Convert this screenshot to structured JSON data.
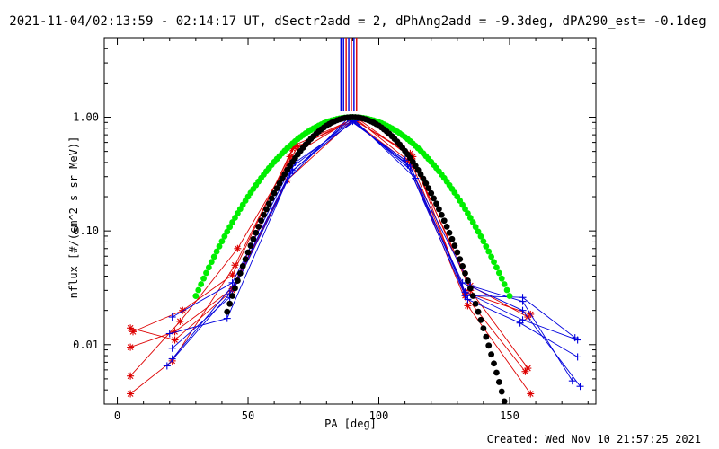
{
  "title": "2021-11-04/02:13:59 - 02:14:17 UT, dSectr2add = 2, dPhAng2add = -9.3deg, dPA290_est= -0.1deg",
  "footer": "Created: Wed Nov 10 21:57:25 2021",
  "chart_data": {
    "type": "line",
    "xlabel": "PA [deg]",
    "ylabel": "nflux [#/(cm^2 s sr MeV)]",
    "xlim": [
      -5,
      183
    ],
    "ylim": [
      0.003,
      5.0
    ],
    "yscale": "log",
    "grid": false,
    "x_ticks": [
      0,
      50,
      100,
      150
    ],
    "x_tick_labels": [
      "0",
      "50",
      "100",
      "150"
    ],
    "y_ticks": [
      0.01,
      0.1,
      1.0
    ],
    "y_tick_labels": [
      "0.01",
      "0.10",
      "1.00"
    ],
    "colors": {
      "red": "#dd0000",
      "blue": "#0000dd",
      "green": "#00ee00",
      "black": "#000000"
    },
    "vertical_lines": [
      {
        "x": 85.5,
        "color": "#0000dd"
      },
      {
        "x": 86.5,
        "color": "#0000dd"
      },
      {
        "x": 87.5,
        "color": "#dd0000"
      },
      {
        "x": 88.5,
        "color": "#0000dd"
      },
      {
        "x": 89.5,
        "color": "#dd0000"
      },
      {
        "x": 90.5,
        "color": "#0000dd"
      },
      {
        "x": 91.5,
        "color": "#dd0000"
      }
    ],
    "series": [
      {
        "color": "#dd0000",
        "points": [
          [
            5,
            0.0095
          ],
          [
            22,
            0.013
          ],
          [
            44,
            0.031
          ],
          [
            66,
            0.45
          ],
          [
            90,
            0.97
          ],
          [
            113,
            0.45
          ],
          [
            133,
            0.027
          ],
          [
            156,
            0.0058
          ]
        ]
      },
      {
        "color": "#dd0000",
        "points": [
          [
            5,
            0.0053
          ],
          [
            24,
            0.016
          ],
          [
            46,
            0.07
          ],
          [
            69,
            0.55
          ],
          [
            90,
            0.96
          ],
          [
            112,
            0.48
          ],
          [
            135,
            0.03
          ],
          [
            157,
            0.0062
          ]
        ]
      },
      {
        "color": "#dd0000",
        "points": [
          [
            5,
            0.0037
          ],
          [
            21,
            0.0072
          ],
          [
            45,
            0.05
          ],
          [
            68,
            0.57
          ],
          [
            91,
            0.98
          ],
          [
            111,
            0.42
          ],
          [
            134,
            0.022
          ],
          [
            158,
            0.0037
          ]
        ]
      },
      {
        "color": "#dd0000",
        "points": [
          [
            6,
            0.013
          ],
          [
            25,
            0.02
          ],
          [
            44,
            0.041
          ],
          [
            67,
            0.53
          ],
          [
            92,
            0.97
          ],
          [
            112,
            0.45
          ],
          [
            135,
            0.033
          ],
          [
            157,
            0.0175
          ]
        ]
      },
      {
        "color": "#dd0000",
        "points": [
          [
            5,
            0.014
          ],
          [
            22,
            0.011
          ],
          [
            44,
            0.03
          ],
          [
            65,
            0.28
          ],
          [
            90,
            0.94
          ],
          [
            113,
            0.37
          ],
          [
            133,
            0.029
          ],
          [
            158,
            0.0185
          ]
        ]
      },
      {
        "color": "#0000dd",
        "points": [
          [
            21,
            0.0175
          ],
          [
            44,
            0.035
          ],
          [
            66,
            0.35
          ],
          [
            90,
            0.95
          ],
          [
            113,
            0.33
          ],
          [
            133,
            0.029
          ],
          [
            155,
            0.0165
          ],
          [
            176,
            0.011
          ]
        ]
      },
      {
        "color": "#0000dd",
        "points": [
          [
            20,
            0.0125
          ],
          [
            42,
            0.017
          ],
          [
            65,
            0.28
          ],
          [
            88,
            0.97
          ],
          [
            110,
            0.42
          ],
          [
            132,
            0.035
          ],
          [
            155,
            0.02
          ],
          [
            177,
            0.0043
          ]
        ]
      },
      {
        "color": "#0000dd",
        "points": [
          [
            21,
            0.0093
          ],
          [
            43,
            0.026
          ],
          [
            67,
            0.34
          ],
          [
            90,
            0.92
          ],
          [
            112,
            0.37
          ],
          [
            134,
            0.025
          ],
          [
            154,
            0.0155
          ],
          [
            176,
            0.0078
          ]
        ]
      },
      {
        "color": "#0000dd",
        "points": [
          [
            19,
            0.0065
          ],
          [
            43,
            0.028
          ],
          [
            66,
            0.32
          ],
          [
            89,
            0.96
          ],
          [
            111,
            0.38
          ],
          [
            133,
            0.027
          ],
          [
            155,
            0.026
          ],
          [
            175,
            0.0115
          ]
        ]
      },
      {
        "color": "#0000dd",
        "points": [
          [
            21,
            0.0075
          ],
          [
            45,
            0.035
          ],
          [
            68,
            0.4
          ],
          [
            91,
            0.93
          ],
          [
            114,
            0.29
          ],
          [
            135,
            0.033
          ],
          [
            155,
            0.024
          ],
          [
            174,
            0.0048
          ]
        ]
      }
    ],
    "curves": [
      {
        "name": "",
        "color": "#00ee00",
        "sigma": 22.3,
        "x_range": [
          30,
          150
        ]
      },
      {
        "name": "",
        "color": "#000000",
        "sigma": 17.1,
        "x_range": [
          42,
          150
        ]
      }
    ]
  }
}
